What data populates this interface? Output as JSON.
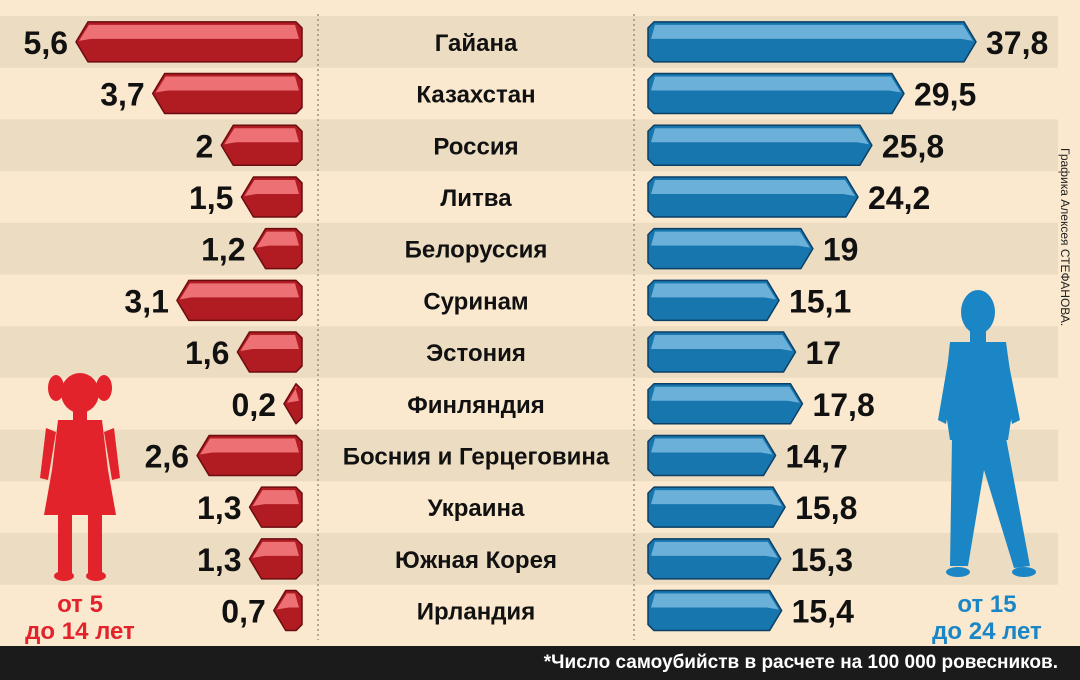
{
  "chart_data": {
    "type": "bar",
    "categories": [
      "Гайана",
      "Казахстан",
      "Россия",
      "Литва",
      "Белоруссия",
      "Суринам",
      "Эстония",
      "Финляндия",
      "Босния и Герцеговина",
      "Украина",
      "Южная Корея",
      "Ирландия"
    ],
    "series": [
      {
        "name": "от 5 до 14 лет",
        "color": "#e3232b",
        "values": [
          5.6,
          3.7,
          2,
          1.5,
          1.2,
          3.1,
          1.6,
          0.2,
          2.6,
          1.3,
          1.3,
          0.7
        ],
        "labels": [
          "5,6",
          "3,7",
          "2",
          "1,5",
          "1,2",
          "3,1",
          "1,6",
          "0,2",
          "2,6",
          "1,3",
          "1,3",
          "0,7"
        ]
      },
      {
        "name": "от 15 до 24 лет",
        "color": "#1a86c5",
        "values": [
          37.8,
          29.5,
          25.8,
          24.2,
          19,
          15.1,
          17,
          17.8,
          14.7,
          15.8,
          15.3,
          15.4
        ],
        "labels": [
          "37,8",
          "29,5",
          "25,8",
          "24,2",
          "19",
          "15,1",
          "17",
          "17,8",
          "14,7",
          "15,8",
          "15,3",
          "15,4"
        ]
      }
    ],
    "footnote": "*Число самоубийств в расчете на 100 000 ровесников.",
    "credit": "Графика Алексея СТЕФАНОВА."
  },
  "groups": {
    "left_line1": "от 5",
    "left_line2": "до 14 лет",
    "right_line1": "от 15",
    "right_line2": "до 24 лет"
  },
  "colors": {
    "background": "#fbe9cf",
    "stripe": "#ecdcc1",
    "red": "#e3232b",
    "blue": "#1a86c5"
  }
}
